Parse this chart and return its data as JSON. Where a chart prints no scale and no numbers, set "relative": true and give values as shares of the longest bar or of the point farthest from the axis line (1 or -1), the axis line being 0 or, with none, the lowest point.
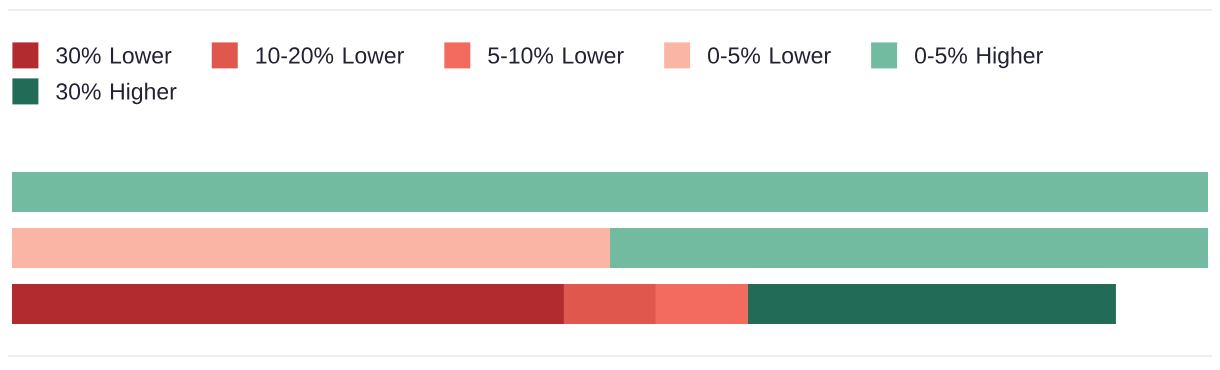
{
  "chart_data": {
    "type": "bar",
    "orientation": "horizontal",
    "stacked": true,
    "relative": true,
    "legend": "top left",
    "categories": [
      null,
      null,
      null
    ],
    "series": [
      {
        "name": "30% Lower",
        "color": "#b22c2f",
        "values": [
          null,
          null,
          0.4615
        ]
      },
      {
        "name": "10-20% Lower",
        "color": "#e0584d",
        "values": [
          null,
          null,
          0.0769
        ]
      },
      {
        "name": "5-10% Lower",
        "color": "#f26b5e",
        "values": [
          null,
          null,
          0.0769
        ]
      },
      {
        "name": "0-5% Lower",
        "color": "#fbb5a5",
        "values": [
          null,
          0.5,
          null
        ]
      },
      {
        "name": "0-5% Higher",
        "color": "#72baa0",
        "values": [
          1,
          0.5,
          null
        ]
      },
      {
        "name": "30% Higher",
        "color": "#216b57",
        "values": [
          null,
          null,
          0.3077
        ]
      }
    ]
  }
}
